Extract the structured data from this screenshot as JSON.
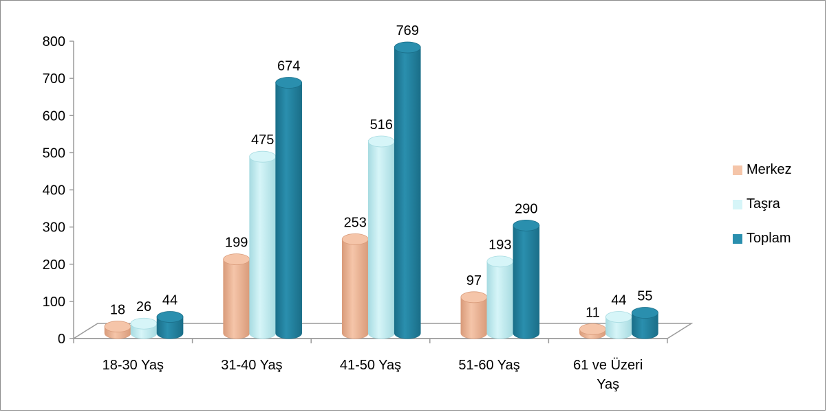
{
  "chart_data": {
    "type": "bar",
    "style": "3d-cylinder",
    "categories": [
      [
        "18-30 Yaş"
      ],
      [
        "31-40 Yaş"
      ],
      [
        "41-50 Yaş"
      ],
      [
        "51-60 Yaş"
      ],
      [
        "61 ve Üzeri",
        "Yaş"
      ]
    ],
    "series": [
      {
        "name": "Merkez",
        "color": "#f5c5a9",
        "dark": "#d99b7a",
        "values": [
          18,
          199,
          253,
          97,
          11
        ]
      },
      {
        "name": "Taşra",
        "color": "#d6f5f8",
        "dark": "#a7dbe1",
        "values": [
          26,
          475,
          516,
          193,
          44
        ]
      },
      {
        "name": "Toplam",
        "color": "#2a8fae",
        "dark": "#1a6e88",
        "values": [
          44,
          674,
          769,
          290,
          55
        ]
      }
    ],
    "yticks": [
      "0",
      "100",
      "200",
      "300",
      "400",
      "500",
      "600",
      "700",
      "800"
    ],
    "ylim": [
      0,
      800
    ],
    "legend_position": "right",
    "data_labels": true,
    "grid": false
  }
}
